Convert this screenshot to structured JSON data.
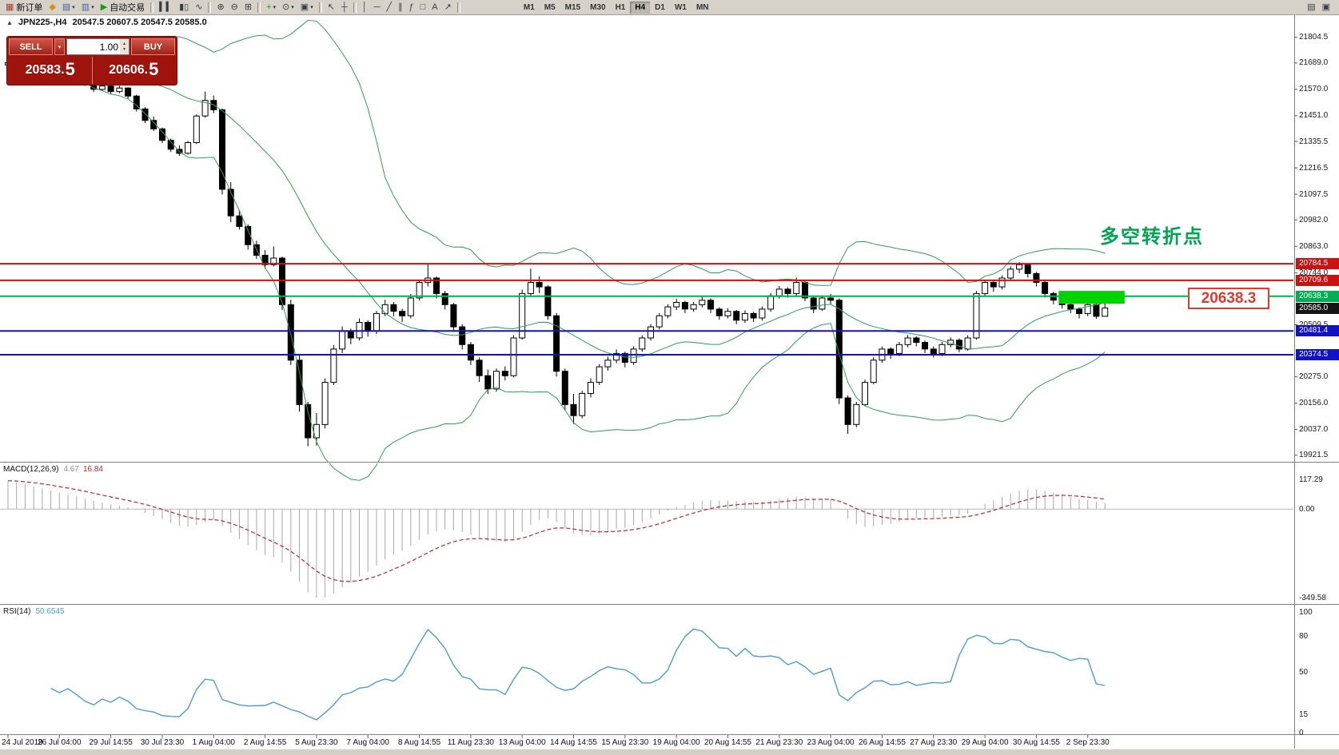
{
  "icons": {
    "caret_down": "▾",
    "spin_up": "▴",
    "spin_down": "▾",
    "one_click_open": "▲"
  },
  "toolbar": {
    "buttons": [
      {
        "name": "new-order",
        "glyph": "▦",
        "glyph_color": "#b03a2e",
        "label": "新订单"
      },
      {
        "name": "metaeditor",
        "glyph": "◆",
        "glyph_color": "#d4930a"
      },
      {
        "name": "new-chart",
        "glyph": "▤",
        "glyph_color": "#46648c",
        "caret": true
      },
      {
        "name": "profiles",
        "glyph": "▥",
        "glyph_color": "#46648c",
        "caret": true
      },
      {
        "name": "autotrading",
        "glyph": "▶",
        "glyph_color": "#18971d",
        "label": "自动交易"
      },
      {
        "sep": true
      },
      {
        "name": "bar-chart",
        "glyph": "▍▍"
      },
      {
        "name": "candlestick-chart",
        "glyph": "▮▯"
      },
      {
        "name": "line-chart",
        "glyph": "∿"
      },
      {
        "sep": true
      },
      {
        "name": "zoom-in",
        "glyph": "⊕"
      },
      {
        "name": "zoom-out",
        "glyph": "⊖"
      },
      {
        "name": "tile-windows",
        "glyph": "⊞"
      },
      {
        "sep": true
      },
      {
        "name": "indicators",
        "glyph": "+",
        "glyph_color": "#18971d",
        "caret": true
      },
      {
        "name": "periods",
        "glyph": "⊙",
        "caret": true
      },
      {
        "name": "templates",
        "glyph": "▣",
        "caret": true
      },
      {
        "sep": true
      },
      {
        "name": "cursor",
        "glyph": "↖"
      },
      {
        "name": "crosshair",
        "glyph": "┼"
      },
      {
        "sep": true
      },
      {
        "name": "vertical-line",
        "glyph": "│"
      },
      {
        "name": "horizontal-line",
        "glyph": "─"
      },
      {
        "name": "trendline",
        "glyph": "╱"
      },
      {
        "name": "channel",
        "glyph": "∥"
      },
      {
        "name": "fibonacci",
        "glyph": "ƒ"
      },
      {
        "name": "shapes",
        "glyph": "□"
      },
      {
        "name": "text",
        "glyph": "A"
      },
      {
        "name": "arrows",
        "glyph": "↗"
      },
      {
        "sep": true
      }
    ],
    "timeframes": [
      "M1",
      "M5",
      "M15",
      "M30",
      "H1",
      "H4",
      "D1",
      "W1",
      "MN"
    ],
    "active_timeframe": "H4",
    "right_buttons": [
      {
        "name": "data-window",
        "glyph": "▤"
      },
      {
        "name": "strategy-tester",
        "glyph": "▣"
      }
    ]
  },
  "chart": {
    "caption_symbol": "JPN225-,H4",
    "caption_ohlc": "20547.5 20607.5 20547.5 20585.0",
    "annotation": {
      "text": "多空转折点",
      "color": "#00a550"
    },
    "callout": {
      "text": "20638.3",
      "color": "#e23b2e"
    }
  },
  "trade_panel": {
    "sell_label": "SELL",
    "buy_label": "BUY",
    "volume": "1.00",
    "sell_price_main": "20583.",
    "sell_price_frac": "5",
    "buy_price_main": "20606.",
    "buy_price_frac": "5"
  },
  "chart_data": {
    "type": "candlestick",
    "symbol": "JPN225-",
    "period": "H4",
    "price_axis": {
      "ticks": [
        21804.5,
        21689.0,
        21570.0,
        21451.0,
        21335.5,
        21216.5,
        21097.5,
        20982.0,
        20863.0,
        20744.0,
        20509.5,
        20275.0,
        20156.0,
        20037.0,
        19921.5
      ],
      "ylim": [
        19890,
        21840
      ]
    },
    "time_axis": [
      "24 Jul 2019",
      "26 Jul 04:00",
      "29 Jul 14:55",
      "30 Jul 23:30",
      "1 Aug 04:00",
      "2 Aug 14:55",
      "5 Aug 23:30",
      "7 Aug 04:00",
      "8 Aug 14:55",
      "11 Aug 23:30",
      "13 Aug 04:00",
      "14 Aug 14:55",
      "15 Aug 23:30",
      "19 Aug 04:00",
      "20 Aug 14:55",
      "21 Aug 23:30",
      "23 Aug 04:00",
      "26 Aug 14:55",
      "27 Aug 23:30",
      "29 Aug 04:00",
      "30 Aug 14:55",
      "2 Sep 23:30"
    ],
    "price_tags": [
      {
        "value": 20784.5,
        "color": "#cc1111"
      },
      {
        "value": 20709.6,
        "color": "#cc1111"
      },
      {
        "value": 20638.3,
        "color": "#00b050"
      },
      {
        "value": 20585.0,
        "color": "#151515"
      },
      {
        "value": 20481.4,
        "color": "#1111cc"
      },
      {
        "value": 20374.5,
        "color": "#1111cc"
      }
    ],
    "hlines": [
      {
        "value": 20784.5,
        "color": "#cc1111"
      },
      {
        "value": 20709.6,
        "color": "#cc1111"
      },
      {
        "value": 20638.3,
        "color": "#00b050"
      },
      {
        "value": 20481.4,
        "color": "#1111cc"
      },
      {
        "value": 20374.5,
        "color": "#1111cc"
      }
    ],
    "highlight_zone": {
      "from_bar": 122.6,
      "to_bar": 130.3,
      "top_price": 20662,
      "bottom_price": 20604,
      "color": "#00d300"
    },
    "bollinger": {
      "period": 20,
      "deviation": 2,
      "color": "#2aa05a"
    },
    "indicators": {
      "macd": {
        "name": "MACD(12,26,9)",
        "value_main": "4.67",
        "value_signal": "16.84",
        "scale_labels": [
          "117.29",
          "0.00",
          "-349.58"
        ],
        "histogram_color": "#a8a8a8",
        "signal_color": "#cc2222"
      },
      "rsi": {
        "name": "RSI(14)",
        "value": "50.6545",
        "levels": [
          100,
          80,
          50,
          15,
          0
        ],
        "color": "#4a9bdc"
      }
    },
    "candles": [
      [
        21680,
        21702,
        21668,
        21690
      ],
      [
        21690,
        21712,
        21682,
        21700
      ],
      [
        21700,
        21708,
        21672,
        21682
      ],
      [
        21682,
        21692,
        21660,
        21670
      ],
      [
        21670,
        21688,
        21662,
        21676
      ],
      [
        21676,
        21682,
        21648,
        21658
      ],
      [
        21658,
        21668,
        21636,
        21645
      ],
      [
        21645,
        21664,
        21638,
        21652
      ],
      [
        21652,
        21658,
        21620,
        21630
      ],
      [
        21630,
        21636,
        21586,
        21596
      ],
      [
        21596,
        21606,
        21558,
        21570
      ],
      [
        21570,
        21596,
        21562,
        21585
      ],
      [
        21585,
        21590,
        21548,
        21560
      ],
      [
        21560,
        21586,
        21552,
        21576
      ],
      [
        21576,
        21580,
        21528,
        21540
      ],
      [
        21540,
        21546,
        21470,
        21482
      ],
      [
        21482,
        21490,
        21418,
        21430
      ],
      [
        21430,
        21448,
        21382,
        21392
      ],
      [
        21392,
        21398,
        21328,
        21340
      ],
      [
        21340,
        21348,
        21288,
        21300
      ],
      [
        21300,
        21318,
        21270,
        21282
      ],
      [
        21282,
        21338,
        21276,
        21330
      ],
      [
        21330,
        21458,
        21324,
        21450
      ],
      [
        21450,
        21560,
        21442,
        21520
      ],
      [
        21520,
        21542,
        21462,
        21478
      ],
      [
        21478,
        21484,
        21096,
        21120
      ],
      [
        21120,
        21152,
        20972,
        21000
      ],
      [
        21000,
        21026,
        20938,
        20952
      ],
      [
        20952,
        20962,
        20848,
        20870
      ],
      [
        20870,
        20888,
        20806,
        20822
      ],
      [
        20822,
        20846,
        20762,
        20780
      ],
      [
        20780,
        20862,
        20772,
        20810
      ],
      [
        20810,
        20816,
        20576,
        20600
      ],
      [
        20600,
        20622,
        20328,
        20350
      ],
      [
        20350,
        20372,
        20118,
        20150
      ],
      [
        20150,
        20162,
        19962,
        20000
      ],
      [
        20000,
        20112,
        19965,
        20060
      ],
      [
        20060,
        20268,
        20042,
        20250
      ],
      [
        20250,
        20418,
        20238,
        20400
      ],
      [
        20400,
        20502,
        20382,
        20480
      ],
      [
        20480,
        20492,
        20422,
        20450
      ],
      [
        20450,
        20538,
        20438,
        20520
      ],
      [
        20520,
        20530,
        20456,
        20480
      ],
      [
        20480,
        20572,
        20468,
        20560
      ],
      [
        20560,
        20622,
        20548,
        20600
      ],
      [
        20600,
        20612,
        20548,
        20570
      ],
      [
        20570,
        20582,
        20522,
        20550
      ],
      [
        20550,
        20648,
        20538,
        20630
      ],
      [
        20630,
        20712,
        20618,
        20700
      ],
      [
        20700,
        20784,
        20682,
        20720
      ],
      [
        20720,
        20726,
        20628,
        20650
      ],
      [
        20650,
        20662,
        20578,
        20600
      ],
      [
        20600,
        20608,
        20478,
        20500
      ],
      [
        20500,
        20512,
        20398,
        20420
      ],
      [
        20420,
        20432,
        20328,
        20350
      ],
      [
        20350,
        20362,
        20252,
        20280
      ],
      [
        20280,
        20308,
        20198,
        20220
      ],
      [
        20220,
        20312,
        20208,
        20300
      ],
      [
        20300,
        20322,
        20258,
        20280
      ],
      [
        20280,
        20462,
        20272,
        20450
      ],
      [
        20450,
        20668,
        20442,
        20650
      ],
      [
        20650,
        20762,
        20638,
        20700
      ],
      [
        20700,
        20728,
        20652,
        20680
      ],
      [
        20680,
        20688,
        20532,
        20550
      ],
      [
        20550,
        20562,
        20276,
        20300
      ],
      [
        20300,
        20312,
        20122,
        20150
      ],
      [
        20150,
        20198,
        20062,
        20100
      ],
      [
        20100,
        20212,
        20088,
        20200
      ],
      [
        20200,
        20268,
        20182,
        20250
      ],
      [
        20250,
        20332,
        20238,
        20320
      ],
      [
        20320,
        20366,
        20302,
        20350
      ],
      [
        20350,
        20398,
        20336,
        20380
      ],
      [
        20380,
        20388,
        20318,
        20340
      ],
      [
        20340,
        20412,
        20328,
        20400
      ],
      [
        20400,
        20462,
        20388,
        20450
      ],
      [
        20450,
        20512,
        20438,
        20500
      ],
      [
        20500,
        20562,
        20488,
        20550
      ],
      [
        20550,
        20602,
        20538,
        20590
      ],
      [
        20590,
        20626,
        20576,
        20610
      ],
      [
        20610,
        20618,
        20562,
        20580
      ],
      [
        20580,
        20612,
        20568,
        20600
      ],
      [
        20600,
        20636,
        20588,
        20620
      ],
      [
        20620,
        20628,
        20562,
        20580
      ],
      [
        20580,
        20588,
        20532,
        20550
      ],
      [
        20550,
        20584,
        20538,
        20570
      ],
      [
        20570,
        20576,
        20512,
        20530
      ],
      [
        20530,
        20574,
        20518,
        20560
      ],
      [
        20560,
        20568,
        20522,
        20540
      ],
      [
        20540,
        20592,
        20528,
        20580
      ],
      [
        20580,
        20652,
        20568,
        20640
      ],
      [
        20640,
        20684,
        20628,
        20670
      ],
      [
        20670,
        20678,
        20632,
        20650
      ],
      [
        20650,
        20722,
        20638,
        20700
      ],
      [
        20700,
        20708,
        20616,
        20630
      ],
      [
        20630,
        20638,
        20562,
        20580
      ],
      [
        20580,
        20642,
        20572,
        20630
      ],
      [
        20630,
        20648,
        20602,
        20620
      ],
      [
        20620,
        20628,
        20152,
        20180
      ],
      [
        20180,
        20192,
        20018,
        20060
      ],
      [
        20060,
        20162,
        20048,
        20150
      ],
      [
        20150,
        20262,
        20142,
        20250
      ],
      [
        20250,
        20362,
        20242,
        20350
      ],
      [
        20350,
        20412,
        20338,
        20400
      ],
      [
        20400,
        20408,
        20356,
        20380
      ],
      [
        20380,
        20432,
        20368,
        20420
      ],
      [
        20420,
        20462,
        20408,
        20450
      ],
      [
        20450,
        20458,
        20412,
        20430
      ],
      [
        20430,
        20438,
        20382,
        20400
      ],
      [
        20400,
        20412,
        20362,
        20380
      ],
      [
        20380,
        20432,
        20368,
        20420
      ],
      [
        20420,
        20452,
        20408,
        20440
      ],
      [
        20440,
        20448,
        20386,
        20400
      ],
      [
        20400,
        20462,
        20392,
        20450
      ],
      [
        20450,
        20662,
        20442,
        20650
      ],
      [
        20650,
        20712,
        20638,
        20700
      ],
      [
        20700,
        20708,
        20658,
        20680
      ],
      [
        20680,
        20732,
        20668,
        20720
      ],
      [
        20720,
        20772,
        20708,
        20760
      ],
      [
        20760,
        20792,
        20742,
        20780
      ],
      [
        20780,
        20786,
        20722,
        20740
      ],
      [
        20740,
        20748,
        20682,
        20700
      ],
      [
        20700,
        20708,
        20632,
        20650
      ],
      [
        20650,
        20658,
        20602,
        20620
      ],
      [
        20620,
        20632,
        20582,
        20600
      ],
      [
        20600,
        20612,
        20562,
        20580
      ],
      [
        20580,
        20588,
        20538,
        20560
      ],
      [
        20560,
        20612,
        20548,
        20600
      ],
      [
        20600,
        20606,
        20536,
        20547.5
      ],
      [
        20547.5,
        20607.5,
        20547.5,
        20585
      ]
    ]
  }
}
